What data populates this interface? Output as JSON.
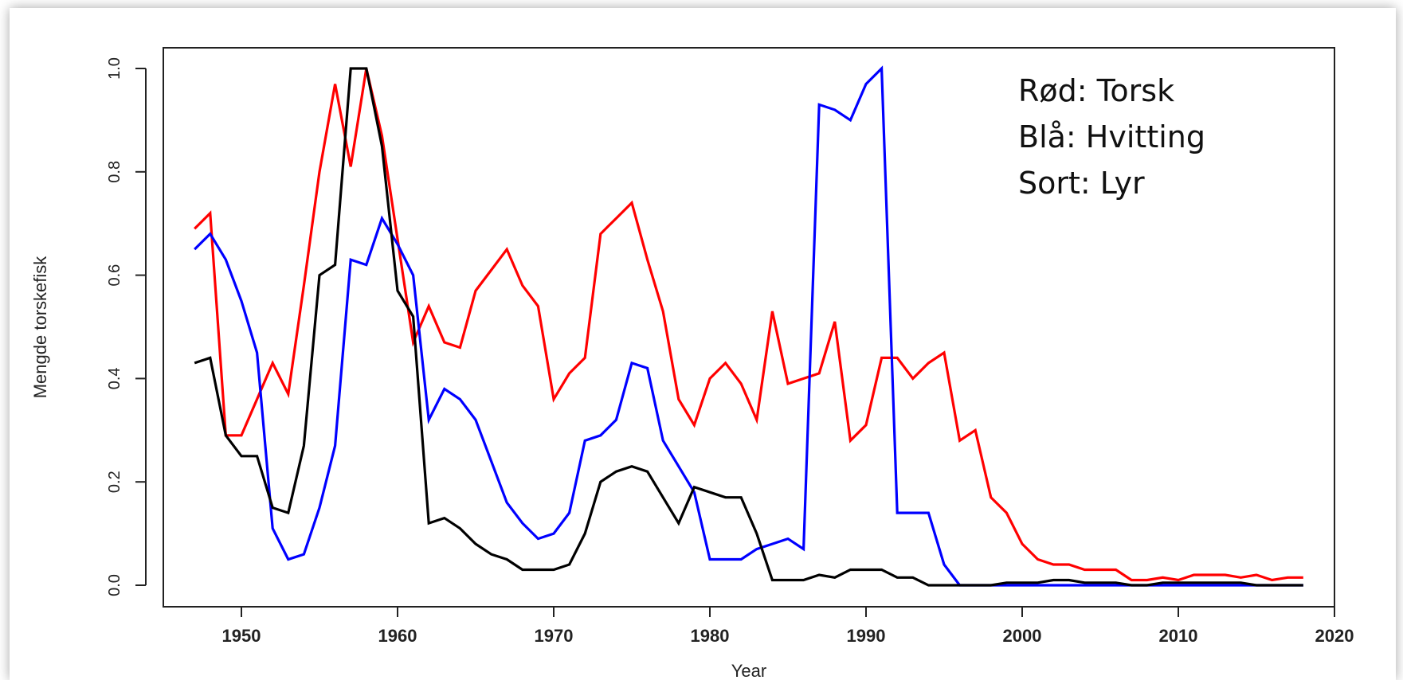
{
  "chart_data": {
    "type": "line",
    "title": "",
    "xlabel": "Year",
    "ylabel": "Mengde torskefisk",
    "xlim": [
      1945,
      2020
    ],
    "ylim": [
      0.0,
      1.0
    ],
    "x_ticks": [
      "1950",
      "1960",
      "1970",
      "1980",
      "1990",
      "2000",
      "2010",
      "2020"
    ],
    "y_ticks": [
      "0.0",
      "0.2",
      "0.4",
      "0.6",
      "0.8",
      "1.0"
    ],
    "grid": false,
    "legend": {
      "placement": "top-right",
      "entries": [
        "Rød: Torsk",
        "Blå: Hvitting",
        "Sort: Lyr"
      ]
    },
    "x": [
      1947,
      1948,
      1949,
      1950,
      1951,
      1952,
      1953,
      1954,
      1955,
      1956,
      1957,
      1958,
      1959,
      1960,
      1961,
      1962,
      1963,
      1964,
      1965,
      1966,
      1967,
      1968,
      1969,
      1970,
      1971,
      1972,
      1973,
      1974,
      1975,
      1976,
      1977,
      1978,
      1979,
      1980,
      1981,
      1982,
      1983,
      1984,
      1985,
      1986,
      1987,
      1988,
      1989,
      1990,
      1991,
      1992,
      1993,
      1994,
      1995,
      1996,
      1997,
      1998,
      1999,
      2000,
      2001,
      2002,
      2003,
      2004,
      2005,
      2006,
      2007,
      2008,
      2009,
      2010,
      2011,
      2012,
      2013,
      2014,
      2015,
      2016,
      2017,
      2018
    ],
    "series": [
      {
        "name": "Torsk",
        "color": "#ff0000",
        "values": [
          0.69,
          0.72,
          0.29,
          0.29,
          0.36,
          0.43,
          0.37,
          0.58,
          0.8,
          0.97,
          0.81,
          1.0,
          0.87,
          0.67,
          0.47,
          0.54,
          0.47,
          0.46,
          0.57,
          0.61,
          0.65,
          0.58,
          0.54,
          0.36,
          0.41,
          0.44,
          0.68,
          0.71,
          0.74,
          0.63,
          0.53,
          0.36,
          0.31,
          0.4,
          0.43,
          0.39,
          0.32,
          0.53,
          0.39,
          0.4,
          0.41,
          0.51,
          0.28,
          0.31,
          0.44,
          0.44,
          0.4,
          0.43,
          0.45,
          0.28,
          0.3,
          0.17,
          0.14,
          0.08,
          0.05,
          0.04,
          0.04,
          0.03,
          0.03,
          0.03,
          0.01,
          0.01,
          0.015,
          0.01,
          0.02,
          0.02,
          0.02,
          0.015,
          0.02,
          0.01,
          0.015,
          0.015
        ]
      },
      {
        "name": "Hvitting",
        "color": "#0000ff",
        "values": [
          0.65,
          0.68,
          0.63,
          0.55,
          0.45,
          0.11,
          0.05,
          0.06,
          0.15,
          0.27,
          0.63,
          0.62,
          0.71,
          0.66,
          0.6,
          0.32,
          0.38,
          0.36,
          0.32,
          0.24,
          0.16,
          0.12,
          0.09,
          0.1,
          0.14,
          0.28,
          0.29,
          0.32,
          0.43,
          0.42,
          0.28,
          0.23,
          0.18,
          0.05,
          0.05,
          0.05,
          0.07,
          0.08,
          0.09,
          0.07,
          0.93,
          0.92,
          0.9,
          0.97,
          1.0,
          0.14,
          0.14,
          0.14,
          0.04,
          0.0,
          0.0,
          0.0,
          0.0,
          0.0,
          0.0,
          0.0,
          0.0,
          0.0,
          0.0,
          0.0,
          0.0,
          0.0,
          0.0,
          0.0,
          0.0,
          0.0,
          0.0,
          0.0,
          0.0,
          0.0,
          0.0,
          0.0
        ]
      },
      {
        "name": "Lyr",
        "color": "#000000",
        "values": [
          0.43,
          0.44,
          0.29,
          0.25,
          0.25,
          0.15,
          0.14,
          0.27,
          0.6,
          0.62,
          1.0,
          1.0,
          0.85,
          0.57,
          0.52,
          0.12,
          0.13,
          0.11,
          0.08,
          0.06,
          0.05,
          0.03,
          0.03,
          0.03,
          0.04,
          0.1,
          0.2,
          0.22,
          0.23,
          0.22,
          0.17,
          0.12,
          0.19,
          0.18,
          0.17,
          0.17,
          0.1,
          0.01,
          0.01,
          0.01,
          0.02,
          0.015,
          0.03,
          0.03,
          0.03,
          0.015,
          0.015,
          0.0,
          0.0,
          0.0,
          0.0,
          0.0,
          0.005,
          0.005,
          0.005,
          0.01,
          0.01,
          0.005,
          0.005,
          0.005,
          0.0,
          0.0,
          0.005,
          0.005,
          0.005,
          0.005,
          0.005,
          0.005,
          0.0,
          0.0,
          0.0,
          0.0
        ]
      }
    ]
  }
}
